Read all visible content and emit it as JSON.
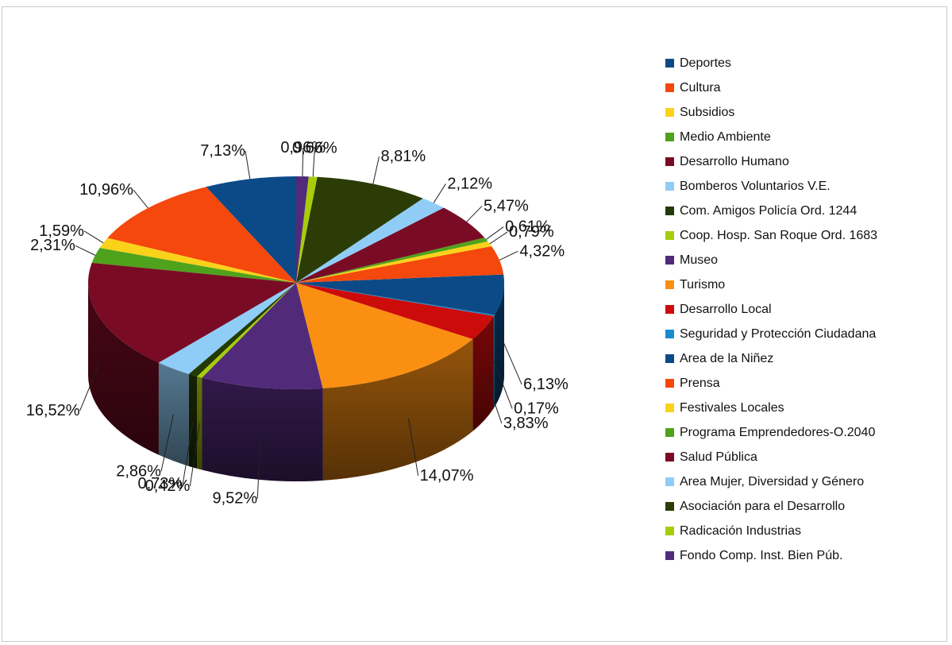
{
  "chart_data": {
    "type": "pie",
    "style": "3d",
    "legend_position": "right",
    "unit": "%",
    "slices": [
      {
        "label": "Deportes",
        "value": 7.13,
        "color": "#0b4a86"
      },
      {
        "label": "Cultura",
        "value": 10.96,
        "color": "#f5480d"
      },
      {
        "label": "Subsidios",
        "value": 1.59,
        "color": "#fbd21a"
      },
      {
        "label": "Medio Ambiente",
        "value": 2.31,
        "color": "#4fa21c"
      },
      {
        "label": "Desarrollo Humano",
        "value": 16.52,
        "color": "#7a0b25"
      },
      {
        "label": "Bomberos Voluntarios V.E.",
        "value": 2.86,
        "color": "#8fcdf7"
      },
      {
        "label": "Com. Amigos Policía Ord. 1244",
        "value": 0.73,
        "color": "#233a06"
      },
      {
        "label": "Coop. Hosp. San Roque Ord. 1683",
        "value": 0.42,
        "color": "#a8cc0a"
      },
      {
        "label": "Museo",
        "value": 9.52,
        "color": "#522a7a"
      },
      {
        "label": "Turismo",
        "value": 14.07,
        "color": "#fb8f12"
      },
      {
        "label": "Desarrollo Local",
        "value": 3.83,
        "color": "#cc0b0b"
      },
      {
        "label": "Seguridad y Protección Ciudadana",
        "value": 0.17,
        "color": "#1a8ad0"
      },
      {
        "label": "Area de la Niñez",
        "value": 6.13,
        "color": "#0b4a86"
      },
      {
        "label": "Prensa",
        "value": 4.32,
        "color": "#f5480d"
      },
      {
        "label": "Festivales Locales",
        "value": 0.79,
        "color": "#fbd21a"
      },
      {
        "label": "Programa Emprendedores-O.2040",
        "value": 0.61,
        "color": "#4fa21c"
      },
      {
        "label": "Salud Pública",
        "value": 5.47,
        "color": "#7a0b25"
      },
      {
        "label": "Area Mujer, Diversidad y Género",
        "value": 2.12,
        "color": "#8fcdf7"
      },
      {
        "label": "Asociación para el Desarrollo",
        "value": 8.81,
        "color": "#2b3c06"
      },
      {
        "label": "Radicación Industrias",
        "value": 0.66,
        "color": "#a8cc0a"
      },
      {
        "label": "Fondo Comp. Inst. Bien Púb.",
        "value": 0.96,
        "color": "#522a7a"
      }
    ],
    "data_labels": [
      "7,13%",
      "10,96%",
      "1,59%",
      "2,31%",
      "16,52%",
      "2,86%",
      "0,73%",
      "0,42%",
      "9,52%",
      "14,07%",
      "3,83%",
      "0,17%",
      "6,13%",
      "4,32%",
      "0,79%",
      "0,61%",
      "5,47%",
      "2,12%",
      "8,81%",
      "0,66%",
      "0,96%"
    ]
  }
}
